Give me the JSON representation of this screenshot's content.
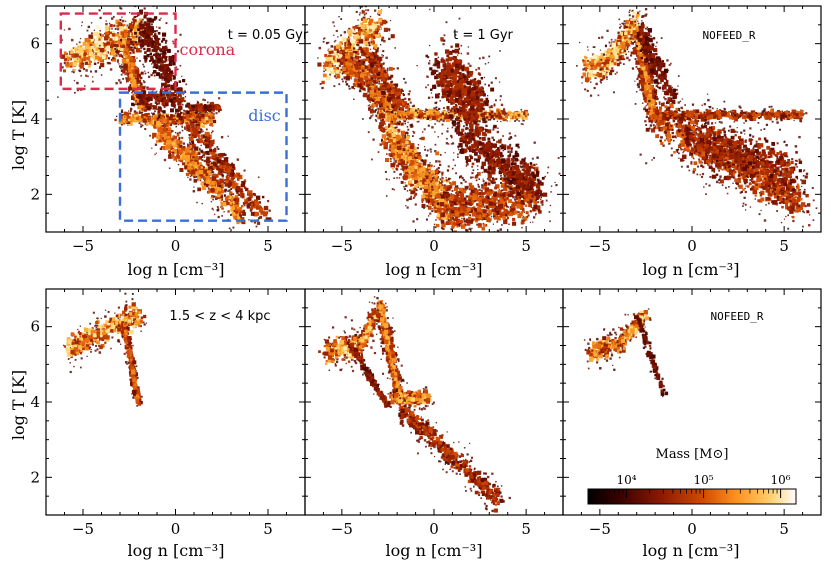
{
  "chart_data": {
    "type": "heatmap",
    "xlabel": "log n [cm⁻³]",
    "ylabel": "log T [K]",
    "xlim": [
      -7,
      7
    ],
    "ylim": [
      1,
      7
    ],
    "xticks": [
      "−5",
      "0",
      "5"
    ],
    "xtick_values": [
      -5,
      0,
      5
    ],
    "yticks": [
      "2",
      "4",
      "6"
    ],
    "ytick_values": [
      2,
      4,
      6
    ],
    "colorbar": {
      "label": "Mass [M⊙]",
      "ticks": [
        "10⁴",
        "10⁵",
        "10⁶"
      ],
      "log_range": [
        3.5,
        6.2
      ],
      "colors": [
        "#000000",
        "#3a0000",
        "#8a1a00",
        "#d04a00",
        "#ff9420",
        "#ffd070",
        "#ffffff"
      ]
    },
    "panels": [
      {
        "id": "top-left",
        "annotation": "t = 0.05 Gyr",
        "regions": [
          {
            "label": "corona",
            "color": "#dc2a4b",
            "x_range": [
              -6.2,
              0
            ],
            "y_range": [
              4.8,
              6.8
            ]
          },
          {
            "label": "disc",
            "color": "#3c6fd6",
            "x_range": [
              -3,
              6
            ],
            "y_range": [
              1.3,
              4.7
            ]
          }
        ],
        "blobs": [
          {
            "x0": -5.8,
            "y0": 5.5,
            "x1": -2.2,
            "y1": 6.3,
            "w": 0.42,
            "i": 0.98,
            "n": 320
          },
          {
            "x0": -2.2,
            "y0": 6.3,
            "x1": -1.9,
            "y1": 6.5,
            "w": 0.25,
            "i": 0.9,
            "n": 60
          },
          {
            "x0": -2.8,
            "y0": 6.0,
            "x1": -1.8,
            "y1": 4.3,
            "w": 0.28,
            "i": 0.8,
            "n": 240
          },
          {
            "x0": -1.8,
            "y0": 6.5,
            "x1": -0.2,
            "y1": 5.0,
            "w": 0.45,
            "i": 0.25,
            "n": 220
          },
          {
            "x0": -3.0,
            "y0": 4.0,
            "x1": 2.0,
            "y1": 4.0,
            "w": 0.15,
            "i": 0.85,
            "n": 260
          },
          {
            "x0": -1.0,
            "y0": 3.8,
            "x1": 3.5,
            "y1": 1.5,
            "w": 0.35,
            "i": 0.8,
            "n": 420
          },
          {
            "x0": 0.5,
            "y0": 4.0,
            "x1": 4.8,
            "y1": 1.4,
            "w": 0.3,
            "i": 0.55,
            "n": 260
          },
          {
            "x0": -2.0,
            "y0": 4.5,
            "x1": 0.5,
            "y1": 4.5,
            "w": 0.3,
            "i": 0.35,
            "n": 120
          },
          {
            "x0": 0.8,
            "y0": 4.3,
            "x1": 2.5,
            "y1": 4.3,
            "w": 0.1,
            "i": 0.4,
            "n": 70
          }
        ]
      },
      {
        "id": "top-middle",
        "annotation": "t = 1 Gyr",
        "blobs": [
          {
            "x0": -5.8,
            "y0": 5.4,
            "x1": -3.0,
            "y1": 6.5,
            "w": 0.45,
            "i": 0.98,
            "n": 320
          },
          {
            "x0": -4.8,
            "y0": 5.6,
            "x1": -2.0,
            "y1": 4.0,
            "w": 0.35,
            "i": 0.7,
            "n": 300
          },
          {
            "x0": -3.8,
            "y0": 5.8,
            "x1": -1.3,
            "y1": 4.1,
            "w": 0.3,
            "i": 0.55,
            "n": 220
          },
          {
            "x0": -3.0,
            "y0": 4.1,
            "x1": 5.0,
            "y1": 4.1,
            "w": 0.12,
            "i": 0.9,
            "n": 380
          },
          {
            "x0": -2.5,
            "y0": 3.6,
            "x1": 0.8,
            "y1": 1.6,
            "w": 0.55,
            "i": 0.85,
            "n": 550
          },
          {
            "x0": 0.8,
            "y0": 1.6,
            "x1": 5.5,
            "y1": 2.0,
            "w": 0.65,
            "i": 0.6,
            "n": 500
          },
          {
            "x0": 0.5,
            "y0": 5.2,
            "x1": 2.5,
            "y1": 4.3,
            "w": 0.75,
            "i": 0.4,
            "n": 420
          },
          {
            "x0": 1.5,
            "y0": 3.6,
            "x1": 5.5,
            "y1": 2.2,
            "w": 0.55,
            "i": 0.35,
            "n": 380
          }
        ]
      },
      {
        "id": "top-right",
        "annotation": "NOFEED_R",
        "blobs": [
          {
            "x0": -5.7,
            "y0": 5.3,
            "x1": -4.5,
            "y1": 5.5,
            "w": 0.35,
            "i": 0.98,
            "n": 150
          },
          {
            "x0": -4.5,
            "y0": 5.5,
            "x1": -3.0,
            "y1": 6.6,
            "w": 0.28,
            "i": 0.95,
            "n": 200
          },
          {
            "x0": -3.0,
            "y0": 6.3,
            "x1": -2.1,
            "y1": 4.2,
            "w": 0.28,
            "i": 0.8,
            "n": 280
          },
          {
            "x0": -2.8,
            "y0": 6.3,
            "x1": -1.0,
            "y1": 4.5,
            "w": 0.3,
            "i": 0.3,
            "n": 140
          },
          {
            "x0": -2.0,
            "y0": 4.1,
            "x1": 6.0,
            "y1": 4.1,
            "w": 0.1,
            "i": 0.6,
            "n": 300
          },
          {
            "x0": -2.0,
            "y0": 4.0,
            "x1": 6.0,
            "y1": 1.8,
            "w": 0.55,
            "i": 0.6,
            "n": 650
          },
          {
            "x0": 0.0,
            "y0": 3.5,
            "x1": 5.5,
            "y1": 2.6,
            "w": 0.5,
            "i": 0.45,
            "n": 380
          }
        ]
      },
      {
        "id": "bottom-left",
        "annotation": "1.5 < z < 4 kpc",
        "blobs": [
          {
            "x0": -5.8,
            "y0": 5.4,
            "x1": -2.0,
            "y1": 6.3,
            "w": 0.28,
            "i": 0.95,
            "n": 320
          },
          {
            "x0": -2.8,
            "y0": 6.1,
            "x1": -2.0,
            "y1": 4.0,
            "w": 0.12,
            "i": 0.7,
            "n": 180
          }
        ]
      },
      {
        "id": "bottom-middle",
        "annotation": "",
        "blobs": [
          {
            "x0": -5.8,
            "y0": 5.3,
            "x1": -4.0,
            "y1": 5.5,
            "w": 0.3,
            "i": 0.95,
            "n": 160
          },
          {
            "x0": -4.0,
            "y0": 5.5,
            "x1": -2.9,
            "y1": 6.6,
            "w": 0.18,
            "i": 0.9,
            "n": 150
          },
          {
            "x0": -2.9,
            "y0": 6.5,
            "x1": -1.9,
            "y1": 4.2,
            "w": 0.22,
            "i": 0.8,
            "n": 260
          },
          {
            "x0": -4.5,
            "y0": 5.5,
            "x1": -2.5,
            "y1": 3.9,
            "w": 0.08,
            "i": 0.4,
            "n": 120
          },
          {
            "x0": -2.3,
            "y0": 4.1,
            "x1": -0.2,
            "y1": 4.1,
            "w": 0.15,
            "i": 0.85,
            "n": 200
          },
          {
            "x0": -1.8,
            "y0": 3.8,
            "x1": 3.5,
            "y1": 1.4,
            "w": 0.25,
            "i": 0.5,
            "n": 330
          }
        ]
      },
      {
        "id": "bottom-right",
        "annotation": "NOFEED_R",
        "blobs": [
          {
            "x0": -5.5,
            "y0": 5.3,
            "x1": -3.8,
            "y1": 5.6,
            "w": 0.25,
            "i": 0.85,
            "n": 130
          },
          {
            "x0": -3.8,
            "y0": 5.6,
            "x1": -2.5,
            "y1": 6.3,
            "w": 0.18,
            "i": 0.9,
            "n": 110
          },
          {
            "x0": -3.0,
            "y0": 6.3,
            "x1": -1.5,
            "y1": 4.2,
            "w": 0.1,
            "i": 0.25,
            "n": 60
          }
        ]
      }
    ]
  }
}
